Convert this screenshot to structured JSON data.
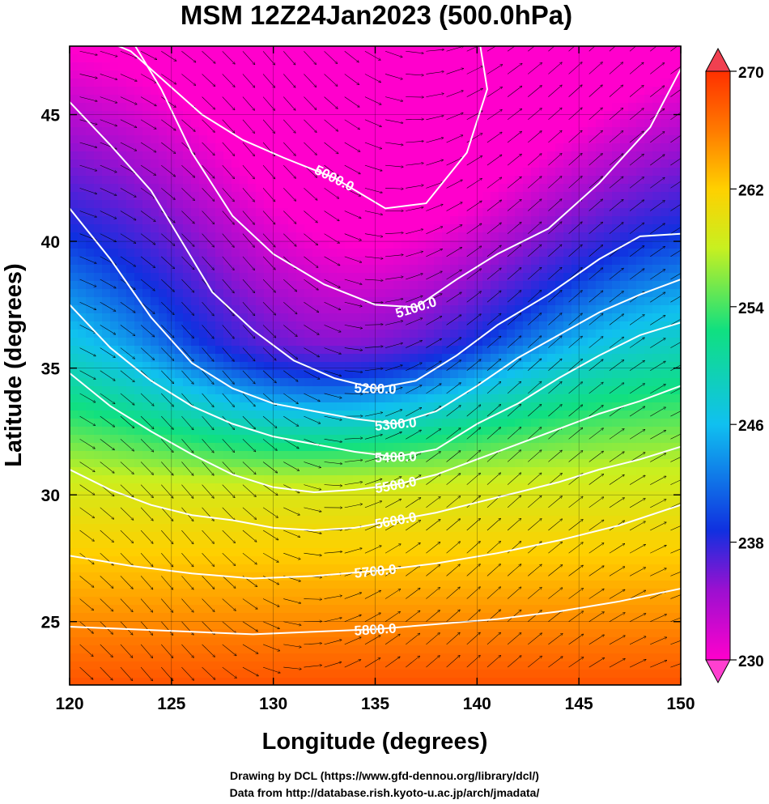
{
  "chart_data": {
    "type": "heatmap",
    "title": "MSM 12Z24Jan2023 (500.0hPa)",
    "xlabel": "Longitude (degrees)",
    "ylabel": "Latitude  (degrees)",
    "xlim": [
      120,
      150
    ],
    "ylim": [
      22.5,
      47.7
    ],
    "x_ticks": [
      120,
      125,
      130,
      135,
      140,
      145,
      150
    ],
    "y_ticks": [
      25,
      30,
      35,
      40,
      45
    ],
    "colorbar": {
      "min": 230,
      "max": 270,
      "ticks": [
        230,
        238,
        246,
        254,
        262,
        270
      ],
      "extend": "both",
      "colormap": [
        "#ff00cc",
        "#9a10d0",
        "#1030e0",
        "#10c0f0",
        "#10e080",
        "#c8f020",
        "#ffd000",
        "#ff7a00",
        "#ff3000"
      ]
    },
    "contours": [
      {
        "level": 5000,
        "label": "5000.0",
        "points": [
          [
            120.0,
            48.5
          ],
          [
            123.0,
            47.5
          ],
          [
            126.5,
            45.0
          ],
          [
            128.5,
            44.0
          ],
          [
            130.5,
            43.3
          ],
          [
            133.0,
            42.5
          ],
          [
            135.5,
            41.3
          ],
          [
            137.5,
            41.5
          ],
          [
            139.5,
            43.5
          ],
          [
            140.5,
            46.0
          ],
          [
            140.0,
            48.5
          ]
        ]
      },
      {
        "level": 5100,
        "label": "5100.0",
        "points": [
          [
            123.0,
            48.0
          ],
          [
            124.5,
            46.0
          ],
          [
            126.0,
            43.5
          ],
          [
            128.0,
            41.0
          ],
          [
            130.0,
            39.5
          ],
          [
            132.5,
            38.3
          ],
          [
            135.0,
            37.5
          ],
          [
            137.0,
            37.4
          ],
          [
            139.0,
            38.5
          ],
          [
            141.0,
            39.5
          ],
          [
            143.5,
            40.5
          ],
          [
            146.0,
            42.3
          ],
          [
            148.5,
            44.5
          ],
          [
            150.0,
            46.8
          ]
        ]
      },
      {
        "level": 5200,
        "label": "5200.0",
        "points": [
          [
            120.0,
            45.5
          ],
          [
            122.0,
            43.8
          ],
          [
            124.0,
            42.0
          ],
          [
            125.5,
            40.0
          ],
          [
            127.0,
            38.0
          ],
          [
            129.0,
            36.5
          ],
          [
            131.0,
            35.3
          ],
          [
            133.0,
            34.6
          ],
          [
            135.0,
            34.2
          ],
          [
            137.0,
            34.5
          ],
          [
            139.0,
            35.5
          ],
          [
            141.0,
            36.7
          ],
          [
            143.5,
            37.9
          ],
          [
            146.0,
            39.3
          ],
          [
            148.0,
            40.2
          ],
          [
            150.0,
            40.3
          ]
        ]
      },
      {
        "level": 5300,
        "label": "5300.0",
        "points": [
          [
            120.0,
            41.3
          ],
          [
            122.0,
            39.3
          ],
          [
            124.0,
            37.0
          ],
          [
            126.0,
            35.2
          ],
          [
            128.0,
            34.2
          ],
          [
            130.0,
            33.6
          ],
          [
            132.0,
            33.3
          ],
          [
            134.0,
            33.0
          ],
          [
            136.0,
            32.8
          ],
          [
            138.0,
            33.3
          ],
          [
            140.0,
            34.3
          ],
          [
            142.0,
            35.4
          ],
          [
            144.0,
            36.3
          ],
          [
            146.0,
            37.2
          ],
          [
            148.0,
            37.9
          ],
          [
            150.0,
            38.5
          ]
        ]
      },
      {
        "level": 5400,
        "label": "5400.0",
        "points": [
          [
            120.0,
            37.5
          ],
          [
            122.0,
            35.8
          ],
          [
            124.0,
            34.5
          ],
          [
            126.0,
            33.5
          ],
          [
            128.0,
            32.8
          ],
          [
            130.0,
            32.3
          ],
          [
            132.0,
            32.0
          ],
          [
            134.0,
            31.7
          ],
          [
            136.0,
            31.5
          ],
          [
            138.0,
            31.8
          ],
          [
            140.0,
            32.8
          ],
          [
            142.0,
            33.6
          ],
          [
            144.0,
            34.6
          ],
          [
            146.0,
            35.5
          ],
          [
            148.0,
            36.3
          ],
          [
            150.0,
            36.8
          ]
        ]
      },
      {
        "level": 5500,
        "label": "5500.0",
        "points": [
          [
            120.0,
            34.8
          ],
          [
            122.0,
            33.5
          ],
          [
            124.0,
            32.5
          ],
          [
            126.0,
            31.6
          ],
          [
            128.0,
            30.8
          ],
          [
            130.0,
            30.3
          ],
          [
            132.0,
            30.1
          ],
          [
            134.0,
            30.2
          ],
          [
            136.0,
            30.4
          ],
          [
            138.0,
            30.8
          ],
          [
            140.0,
            31.4
          ],
          [
            142.0,
            32.0
          ],
          [
            144.0,
            32.6
          ],
          [
            146.0,
            33.2
          ],
          [
            148.0,
            33.7
          ],
          [
            150.0,
            34.3
          ]
        ]
      },
      {
        "level": 5600,
        "label": "5600.0",
        "points": [
          [
            120.0,
            31.0
          ],
          [
            122.0,
            30.2
          ],
          [
            124.0,
            29.6
          ],
          [
            126.0,
            29.2
          ],
          [
            128.0,
            29.0
          ],
          [
            130.0,
            28.7
          ],
          [
            132.0,
            28.6
          ],
          [
            134.0,
            28.7
          ],
          [
            136.0,
            29.0
          ],
          [
            138.0,
            29.3
          ],
          [
            140.0,
            29.7
          ],
          [
            142.0,
            30.1
          ],
          [
            144.0,
            30.5
          ],
          [
            146.0,
            31.0
          ],
          [
            148.0,
            31.4
          ],
          [
            150.0,
            31.9
          ]
        ]
      },
      {
        "level": 5700,
        "label": "5700.0",
        "points": [
          [
            120.0,
            27.6
          ],
          [
            123.0,
            27.2
          ],
          [
            126.0,
            26.9
          ],
          [
            129.0,
            26.7
          ],
          [
            132.0,
            26.8
          ],
          [
            135.0,
            27.0
          ],
          [
            138.0,
            27.3
          ],
          [
            141.0,
            27.7
          ],
          [
            144.0,
            28.2
          ],
          [
            147.0,
            28.8
          ],
          [
            150.0,
            29.6
          ]
        ]
      },
      {
        "level": 5800,
        "label": "5800.0",
        "points": [
          [
            120.0,
            24.8
          ],
          [
            123.0,
            24.7
          ],
          [
            126.0,
            24.6
          ],
          [
            129.0,
            24.5
          ],
          [
            132.0,
            24.6
          ],
          [
            135.0,
            24.7
          ],
          [
            138.0,
            24.9
          ],
          [
            141.0,
            25.1
          ],
          [
            144.0,
            25.4
          ],
          [
            147.0,
            25.8
          ],
          [
            150.0,
            26.3
          ]
        ]
      }
    ]
  },
  "credits": {
    "line1": "Drawing by DCL (https://www.gfd-dennou.org/library/dcl/)",
    "line2": "Data from http://database.rish.kyoto-u.ac.jp/arch/jmadata/"
  }
}
